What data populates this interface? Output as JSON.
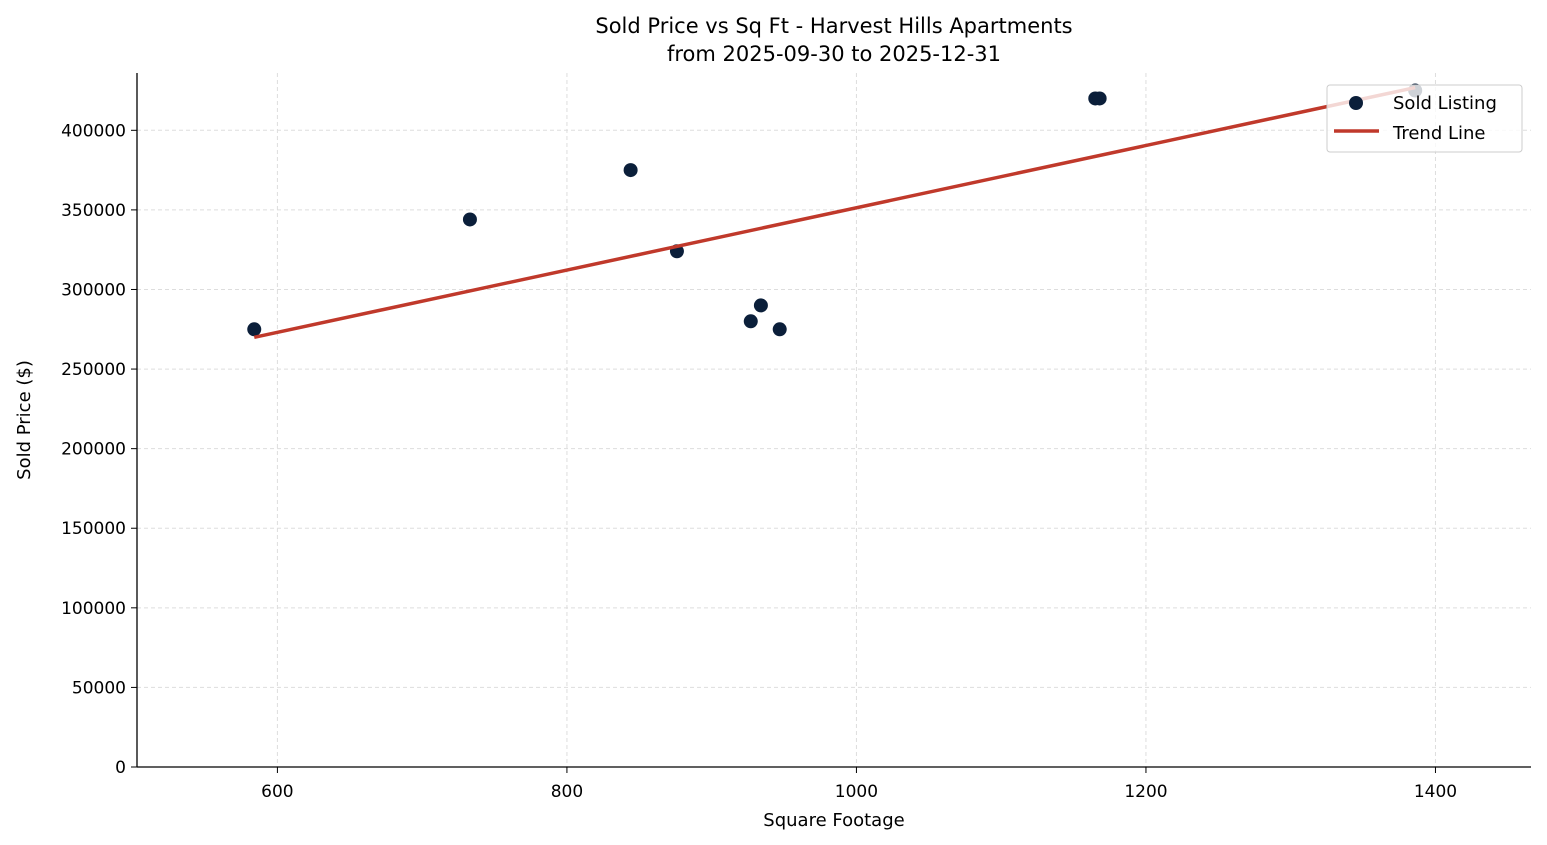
{
  "chart_data": {
    "type": "scatter",
    "title": "Sold Price vs Sq Ft - Harvest Hills Apartments",
    "subtitle": "from 2025-09-30 to 2025-12-31",
    "xlabel": "Square Footage",
    "ylabel": "Sold Price ($)",
    "xlim": [
      503,
      1466
    ],
    "ylim": [
      0,
      436000
    ],
    "xticks": [
      600,
      800,
      1000,
      1200,
      1400
    ],
    "yticks": [
      0,
      50000,
      100000,
      150000,
      200000,
      250000,
      300000,
      350000,
      400000
    ],
    "grid": true,
    "legend_position": "top-right",
    "series": [
      {
        "name": "Sold Listing",
        "type": "scatter",
        "color": "#0b1f3a",
        "x": [
          584,
          733,
          844,
          876,
          927,
          934,
          947,
          1165,
          1168,
          1386
        ],
        "y": [
          275000,
          344000,
          375000,
          324000,
          280000,
          290000,
          275000,
          420000,
          420000,
          425000
        ]
      },
      {
        "name": "Trend Line",
        "type": "line",
        "fit": "linear",
        "color": "#c0392b"
      }
    ]
  }
}
